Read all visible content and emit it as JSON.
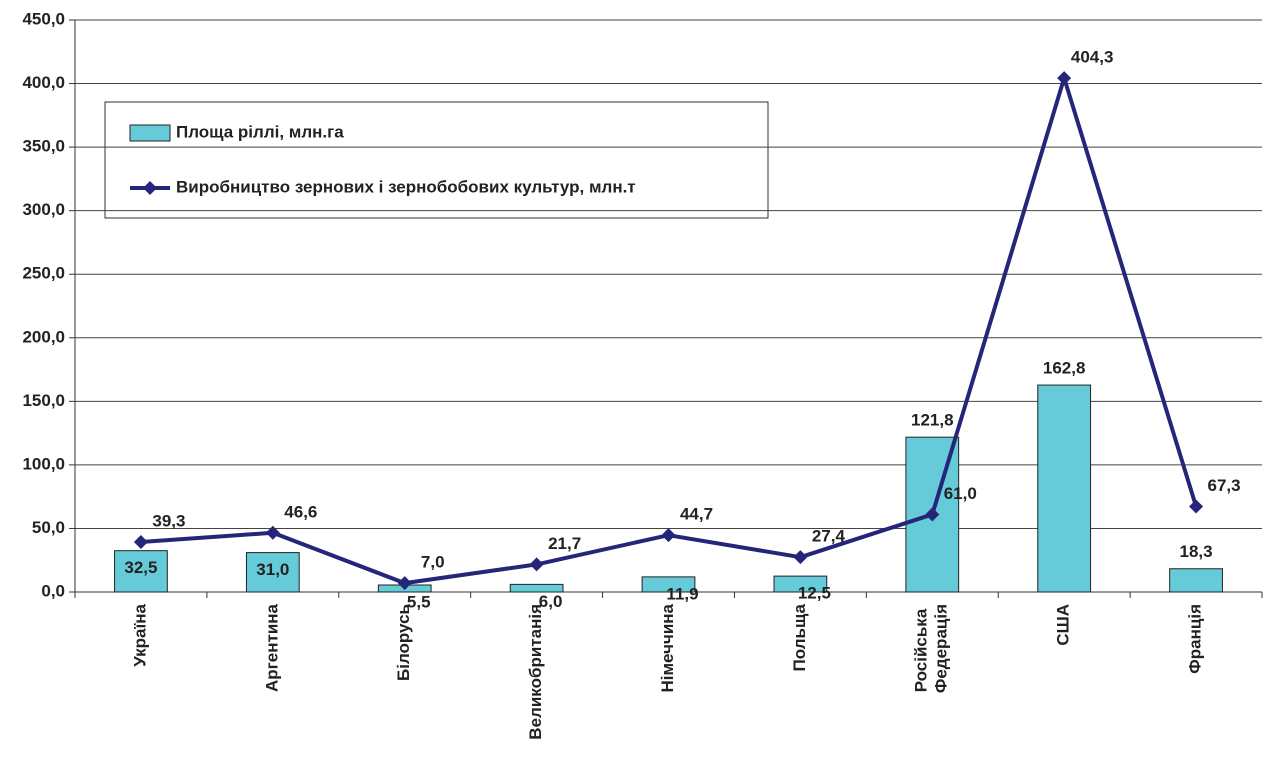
{
  "chart_data": {
    "type": "bar-line",
    "categories": [
      "Україна",
      "Аргентина",
      "Білорусь",
      "Великобританія",
      "Німеччина",
      "Польща",
      "Російська Федерація",
      "США",
      "Франція"
    ],
    "series": [
      {
        "name": "Площа ріллі, млн.га",
        "type": "bar",
        "color": "#66cbd8",
        "values": [
          32.5,
          31.0,
          5.5,
          6.0,
          11.9,
          12.5,
          121.8,
          162.8,
          18.3
        ],
        "value_labels": [
          "32,5",
          "31,0",
          "5,5",
          "6,0",
          "11,9",
          "12,5",
          "121,8",
          "162,8",
          "18,3"
        ]
      },
      {
        "name": "Виробництво зернових і зернобобових культур, млн.т",
        "type": "line",
        "color": "#25267a",
        "values": [
          39.3,
          46.6,
          7.0,
          21.7,
          44.7,
          27.4,
          61.0,
          404.3,
          67.3
        ],
        "value_labels": [
          "39,3",
          "46,6",
          "7,0",
          "21,7",
          "44,7",
          "27,4",
          "61,0",
          "404,3",
          "67,3"
        ]
      }
    ],
    "ylim": [
      0,
      450
    ],
    "yticks": [
      {
        "value": 0,
        "label": "0,0"
      },
      {
        "value": 50,
        "label": "50,0"
      },
      {
        "value": 100,
        "label": "100,0"
      },
      {
        "value": 150,
        "label": "150,0"
      },
      {
        "value": 200,
        "label": "200,0"
      },
      {
        "value": 250,
        "label": "250,0"
      },
      {
        "value": 300,
        "label": "300,0"
      },
      {
        "value": 350,
        "label": "350,0"
      },
      {
        "value": 400,
        "label": "400,0"
      },
      {
        "value": 450,
        "label": "450,0"
      }
    ],
    "grid": true
  }
}
